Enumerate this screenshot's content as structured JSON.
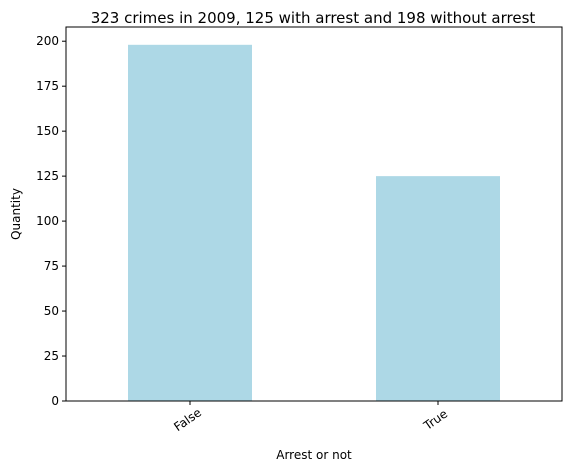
{
  "chart_data": {
    "type": "bar",
    "title": "323 crimes in 2009, 125 with arrest and 198 without arrest",
    "xlabel": "Arrest or not",
    "ylabel": "Quantity",
    "categories": [
      "False",
      "True"
    ],
    "values": [
      198,
      125
    ],
    "ylim": [
      0,
      207.9
    ],
    "yticks": [
      0,
      25,
      50,
      75,
      100,
      125,
      150,
      175,
      200
    ],
    "bar_color": "#add8e6",
    "grid": false,
    "legend": "none"
  }
}
